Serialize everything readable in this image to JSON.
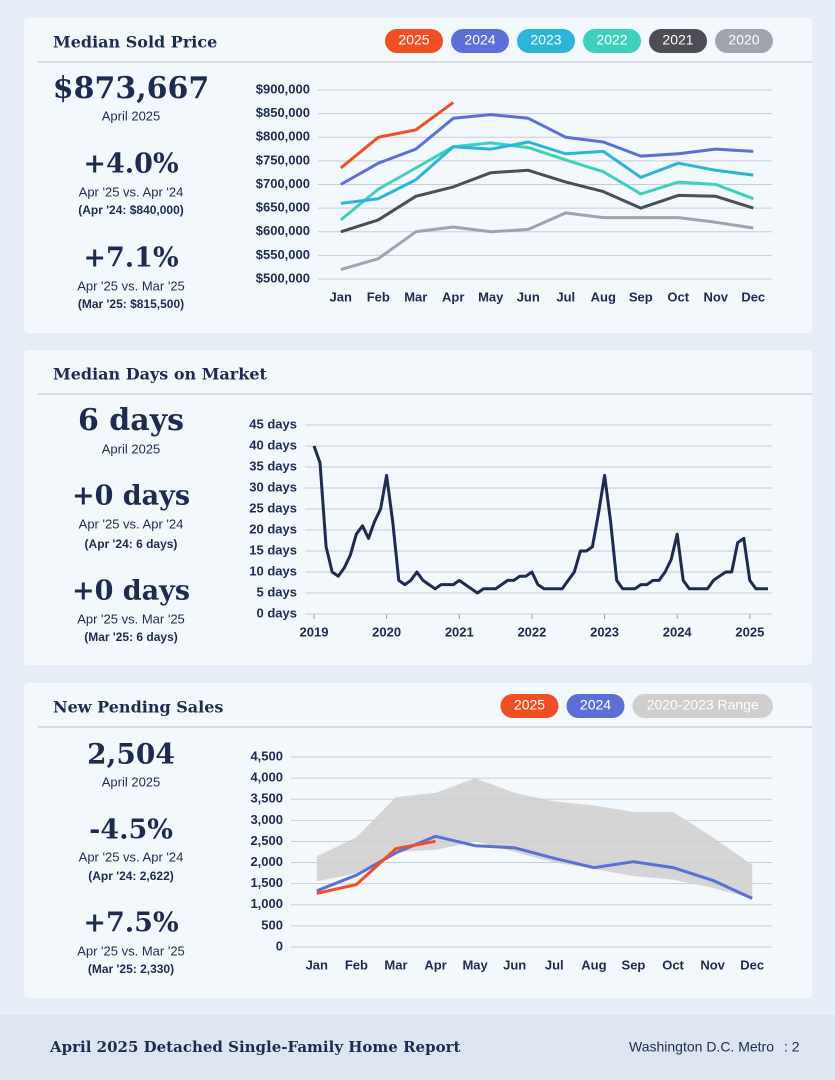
{
  "chart_data": [
    {
      "type": "line",
      "title": "Median Sold Price",
      "summary": {
        "value": "$873,667",
        "period": "April 2025",
        "changes": [
          {
            "value": "+4.0%",
            "label": "Apr '25 vs. Apr '24",
            "detail": "(Apr '24: $840,000)"
          },
          {
            "value": "+7.1%",
            "label": "Apr '25 vs. Mar '25",
            "detail": "(Mar '25: $815,500)"
          }
        ]
      },
      "categories": [
        "Jan",
        "Feb",
        "Mar",
        "Apr",
        "May",
        "Jun",
        "Jul",
        "Aug",
        "Sep",
        "Oct",
        "Nov",
        "Dec"
      ],
      "series": [
        {
          "name": "2025",
          "color": "#f04e23",
          "values": [
            735000,
            800000,
            815500,
            873667,
            null,
            null,
            null,
            null,
            null,
            null,
            null,
            null
          ]
        },
        {
          "name": "2024",
          "color": "#5b6fd6",
          "values": [
            700000,
            745000,
            775000,
            840000,
            848000,
            840000,
            800000,
            790000,
            760000,
            765000,
            775000,
            770000
          ]
        },
        {
          "name": "2023",
          "color": "#2bb5d6",
          "values": [
            660000,
            670000,
            710000,
            780000,
            775000,
            790000,
            765000,
            770000,
            715000,
            745000,
            730000,
            720000
          ]
        },
        {
          "name": "2022",
          "color": "#3fcfbf",
          "values": [
            625000,
            690000,
            735000,
            780000,
            788000,
            778000,
            752000,
            727000,
            680000,
            705000,
            700000,
            670000
          ]
        },
        {
          "name": "2021",
          "color": "#4d4d55",
          "values": [
            600000,
            625000,
            675000,
            695000,
            725000,
            730000,
            705000,
            685000,
            650000,
            677000,
            675000,
            650000
          ]
        },
        {
          "name": "2020",
          "color": "#a0a4ae",
          "values": [
            520000,
            543000,
            600000,
            610000,
            600000,
            605000,
            640000,
            630000,
            630000,
            630000,
            620000,
            608000
          ]
        }
      ],
      "ylim": [
        500000,
        900000
      ],
      "yticks": [
        {
          "value": 500000,
          "label": "$500,000"
        },
        {
          "value": 550000,
          "label": "$550,000"
        },
        {
          "value": 600000,
          "label": "$600,000"
        },
        {
          "value": 650000,
          "label": "$650,000"
        },
        {
          "value": 700000,
          "label": "$700,000"
        },
        {
          "value": 750000,
          "label": "$750,000"
        },
        {
          "value": 800000,
          "label": "$800,000"
        },
        {
          "value": 850000,
          "label": "$850,000"
        },
        {
          "value": 900000,
          "label": "$900,000"
        }
      ],
      "grid": true
    },
    {
      "type": "line",
      "title": "Median Days on Market",
      "summary": {
        "value": "6 days",
        "period": "April 2025",
        "changes": [
          {
            "value": "+0 days",
            "label": "Apr '25 vs. Apr '24",
            "detail": "(Apr '24: 6 days)"
          },
          {
            "value": "+0 days",
            "label": "Apr '25 vs. Mar '25",
            "detail": "(Mar '25: 6 days)"
          }
        ]
      },
      "x": [
        2019,
        2019.083,
        2019.167,
        2019.25,
        2019.333,
        2019.417,
        2019.5,
        2019.583,
        2019.667,
        2019.75,
        2019.833,
        2019.917,
        2020,
        2020.083,
        2020.167,
        2020.25,
        2020.333,
        2020.417,
        2020.5,
        2020.583,
        2020.667,
        2020.75,
        2020.833,
        2020.917,
        2021,
        2021.083,
        2021.167,
        2021.25,
        2021.333,
        2021.417,
        2021.5,
        2021.583,
        2021.667,
        2021.75,
        2021.833,
        2021.917,
        2022,
        2022.083,
        2022.167,
        2022.25,
        2022.333,
        2022.417,
        2022.5,
        2022.583,
        2022.667,
        2022.75,
        2022.833,
        2022.917,
        2023,
        2023.083,
        2023.167,
        2023.25,
        2023.333,
        2023.417,
        2023.5,
        2023.583,
        2023.667,
        2023.75,
        2023.833,
        2023.917,
        2024,
        2024.083,
        2024.167,
        2024.25,
        2024.333,
        2024.417,
        2024.5,
        2024.583,
        2024.667,
        2024.75,
        2024.833,
        2024.917,
        2025,
        2025.083,
        2025.167,
        2025.25
      ],
      "series": [
        {
          "color": "#1d2b4f",
          "values": [
            40,
            36,
            16,
            10,
            9,
            11,
            14,
            19,
            21,
            18,
            22,
            25,
            33,
            22,
            8,
            7,
            8,
            10,
            8,
            7,
            6,
            7,
            7,
            7,
            8,
            7,
            6,
            5,
            6,
            6,
            6,
            7,
            8,
            8,
            9,
            9,
            10,
            7,
            6,
            6,
            6,
            6,
            8,
            10,
            15,
            15,
            16,
            24,
            33,
            22,
            8,
            6,
            6,
            6,
            7,
            7,
            8,
            8,
            10,
            13,
            19,
            8,
            6,
            6,
            6,
            6,
            8,
            9,
            10,
            10,
            17,
            18,
            8,
            6,
            6,
            6
          ]
        }
      ],
      "xlim": [
        2019,
        2025.25
      ],
      "xticks": [
        2019,
        2020,
        2021,
        2022,
        2023,
        2024,
        2025
      ],
      "ylim": [
        0,
        45
      ],
      "yticks": [
        {
          "value": 0,
          "label": "0 days"
        },
        {
          "value": 5,
          "label": "5 days"
        },
        {
          "value": 10,
          "label": "10 days"
        },
        {
          "value": 15,
          "label": "15 days"
        },
        {
          "value": 20,
          "label": "20 days"
        },
        {
          "value": 25,
          "label": "25 days"
        },
        {
          "value": 30,
          "label": "30 days"
        },
        {
          "value": 35,
          "label": "35 days"
        },
        {
          "value": 40,
          "label": "40 days"
        },
        {
          "value": 45,
          "label": "45 days"
        }
      ],
      "grid": true
    },
    {
      "type": "line",
      "title": "New Pending Sales",
      "summary": {
        "value": "2,504",
        "period": "April 2025",
        "changes": [
          {
            "value": "-4.5%",
            "label": "Apr '25 vs. Apr '24",
            "detail": "(Apr '24: 2,622)"
          },
          {
            "value": "+7.5%",
            "label": "Apr '25 vs. Mar '25",
            "detail": "(Mar '25: 2,330)"
          }
        ]
      },
      "categories": [
        "Jan",
        "Feb",
        "Mar",
        "Apr",
        "May",
        "Jun",
        "Jul",
        "Aug",
        "Sep",
        "Oct",
        "Nov",
        "Dec"
      ],
      "series": [
        {
          "name": "2025",
          "color": "#f04e23",
          "values": [
            1270,
            1480,
            2330,
            2504,
            null,
            null,
            null,
            null,
            null,
            null,
            null,
            null
          ]
        },
        {
          "name": "2024",
          "color": "#5b6fd6",
          "values": [
            1330,
            1700,
            2230,
            2622,
            2400,
            2350,
            2100,
            1880,
            2020,
            1880,
            1580,
            1150
          ]
        },
        {
          "name": "2020-2023 Range",
          "color": "#cfcfcf",
          "low": [
            1550,
            1750,
            2250,
            2300,
            2500,
            2250,
            2000,
            1850,
            1680,
            1600,
            1400,
            1150
          ],
          "high": [
            2150,
            2600,
            3550,
            3650,
            4000,
            3650,
            3450,
            3350,
            3200,
            3200,
            2600,
            1950
          ]
        }
      ],
      "ylim": [
        0,
        4500
      ],
      "yticks": [
        0,
        500,
        {
          "value": 1000,
          "label": "1,000"
        },
        {
          "value": 1500,
          "label": "1,500"
        },
        {
          "value": 2000,
          "label": "2,000"
        },
        {
          "value": 2500,
          "label": "2,500"
        },
        {
          "value": 3000,
          "label": "3,000"
        },
        {
          "value": 3500,
          "label": "3,500"
        },
        {
          "value": 4000,
          "label": "4,000"
        },
        {
          "value": 4500,
          "label": "4,500"
        }
      ],
      "grid": true
    }
  ],
  "footer": {
    "title": "April 2025 Detached Single-Family Home Report",
    "region": "Washington D.C. Metro",
    "page": ": 2"
  }
}
